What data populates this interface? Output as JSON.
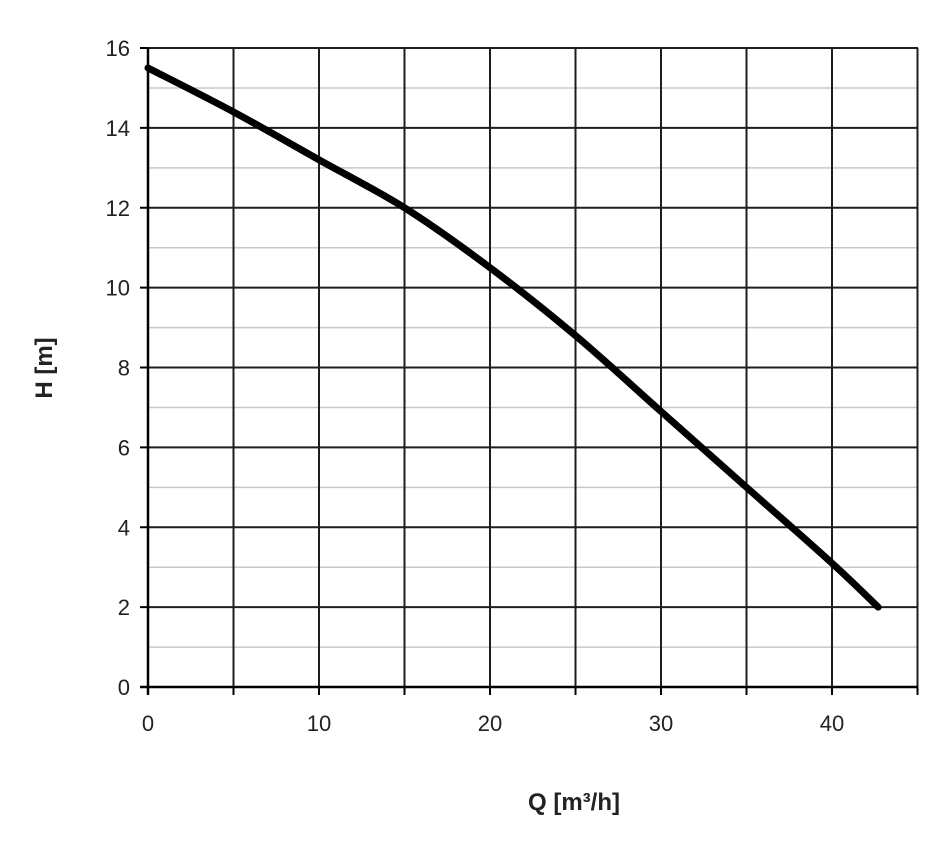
{
  "chart_data": {
    "type": "line",
    "title": "",
    "xlabel": "Q [m³/h]",
    "ylabel": "H [m]",
    "xlim": [
      0,
      45
    ],
    "ylim": [
      0,
      16
    ],
    "x_ticks": [
      "0",
      "10",
      "20",
      "30",
      "40"
    ],
    "y_ticks": [
      "0",
      "2",
      "4",
      "6",
      "8",
      "10",
      "12",
      "14",
      "16"
    ],
    "grid": true,
    "legend": "none",
    "series": [
      {
        "x": [
          0,
          5,
          10,
          15,
          20,
          25,
          30,
          35,
          40,
          42.7
        ],
        "y": [
          15.5,
          14.4,
          13.2,
          12.0,
          10.5,
          8.8,
          6.9,
          5.0,
          3.1,
          2.0
        ]
      }
    ],
    "colors": {
      "curve": "#000000",
      "major_grid": "#1e1e1e",
      "minor_grid": "#c8c8c8",
      "text": "#222222"
    }
  }
}
